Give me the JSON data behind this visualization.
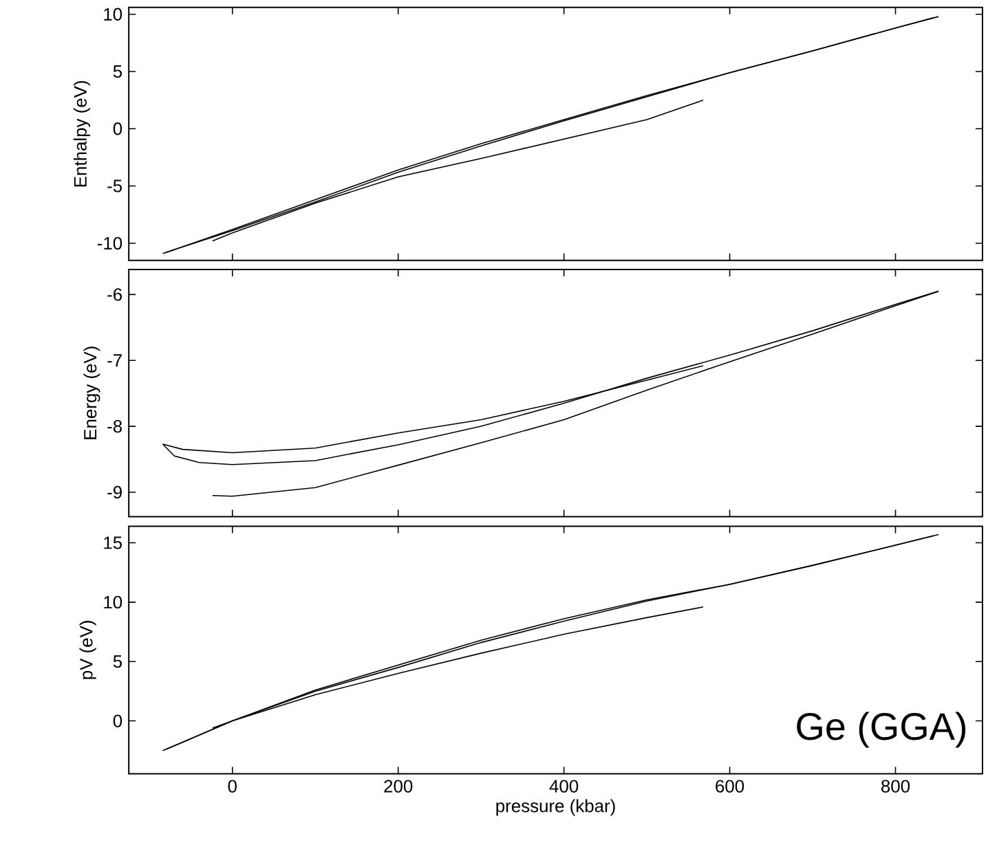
{
  "chart_data": [
    {
      "type": "line",
      "ylabel": "Enthalpy (eV)",
      "xlim": [
        -125,
        905
      ],
      "xticks": [
        0,
        200,
        400,
        600,
        800
      ],
      "ylim": [
        -11.5,
        10.6
      ],
      "yticks": [
        -10,
        -5,
        0,
        5,
        10
      ],
      "tick_labels": "y",
      "series": [
        {
          "color": "#000000",
          "x": [
            -84,
            0,
            100,
            200,
            300,
            400,
            500,
            600,
            700,
            800,
            852
          ],
          "values": [
            -10.9,
            -8.8,
            -6.2,
            -3.6,
            -1.3,
            0.8,
            2.9,
            4.9,
            6.8,
            8.8,
            9.8
          ]
        },
        {
          "color": "#000000",
          "x": [
            -80,
            0,
            100,
            200,
            300,
            400,
            500,
            600,
            700,
            800,
            846
          ],
          "values": [
            -10.8,
            -8.9,
            -6.4,
            -3.8,
            -1.5,
            0.7,
            2.8,
            4.9,
            6.8,
            8.8,
            9.7
          ]
        },
        {
          "color": "#000000",
          "x": [
            -24,
            0,
            100,
            200,
            300,
            400,
            500,
            568
          ],
          "values": [
            -9.8,
            -9.1,
            -6.5,
            -4.2,
            -2.6,
            -0.9,
            0.8,
            2.5
          ]
        }
      ]
    },
    {
      "type": "line",
      "ylabel": "Energy (eV)",
      "xlim": [
        -125,
        905
      ],
      "xticks": [
        0,
        200,
        400,
        600,
        800
      ],
      "ylim": [
        -9.37,
        -5.62
      ],
      "yticks": [
        -9,
        -8,
        -7,
        -6
      ],
      "tick_labels": "y",
      "series": [
        {
          "color": "#000000",
          "x": [
            -84,
            -60,
            0,
            100,
            200,
            300,
            400,
            500,
            568
          ],
          "values": [
            -8.27,
            -8.35,
            -8.4,
            -8.33,
            -8.1,
            -7.9,
            -7.62,
            -7.3,
            -7.08
          ]
        },
        {
          "color": "#000000",
          "x": [
            -84,
            -70,
            -40,
            0,
            100,
            200,
            300,
            400,
            500,
            600,
            700,
            800,
            852
          ],
          "values": [
            -8.27,
            -8.45,
            -8.55,
            -8.58,
            -8.52,
            -8.28,
            -8.0,
            -7.65,
            -7.27,
            -6.92,
            -6.55,
            -6.15,
            -5.95
          ]
        },
        {
          "color": "#000000",
          "x": [
            -24,
            0,
            100,
            200,
            300,
            400,
            500,
            600,
            700,
            800,
            852
          ],
          "values": [
            -9.05,
            -9.06,
            -8.93,
            -8.59,
            -8.25,
            -7.9,
            -7.45,
            -7.02,
            -6.6,
            -6.17,
            -5.95
          ]
        }
      ]
    },
    {
      "type": "line",
      "xlabel": "pressure (kbar)",
      "ylabel": "pV (eV)",
      "xlim": [
        -125,
        905
      ],
      "xticks": [
        0,
        200,
        400,
        600,
        800
      ],
      "ylim": [
        -4.45,
        16.4
      ],
      "yticks": [
        0,
        5,
        10,
        15
      ],
      "annotations": [
        "Ge (GGA)"
      ],
      "series": [
        {
          "color": "#000000",
          "x": [
            -84,
            0,
            100,
            200,
            300,
            400,
            500,
            600,
            700,
            800,
            852
          ],
          "values": [
            -2.5,
            0,
            2.6,
            4.7,
            6.8,
            8.6,
            10.2,
            11.5,
            13.1,
            14.8,
            15.7
          ]
        },
        {
          "color": "#000000",
          "x": [
            -80,
            0,
            100,
            200,
            300,
            400,
            500,
            600,
            700,
            800,
            846
          ],
          "values": [
            -2.4,
            0,
            2.5,
            4.5,
            6.6,
            8.4,
            10.1,
            11.5,
            13.1,
            14.8,
            15.6
          ]
        },
        {
          "color": "#000000",
          "x": [
            -24,
            0,
            100,
            200,
            300,
            400,
            500,
            568
          ],
          "values": [
            -0.6,
            0,
            2.2,
            4.0,
            5.7,
            7.3,
            8.7,
            9.6
          ]
        }
      ]
    }
  ]
}
